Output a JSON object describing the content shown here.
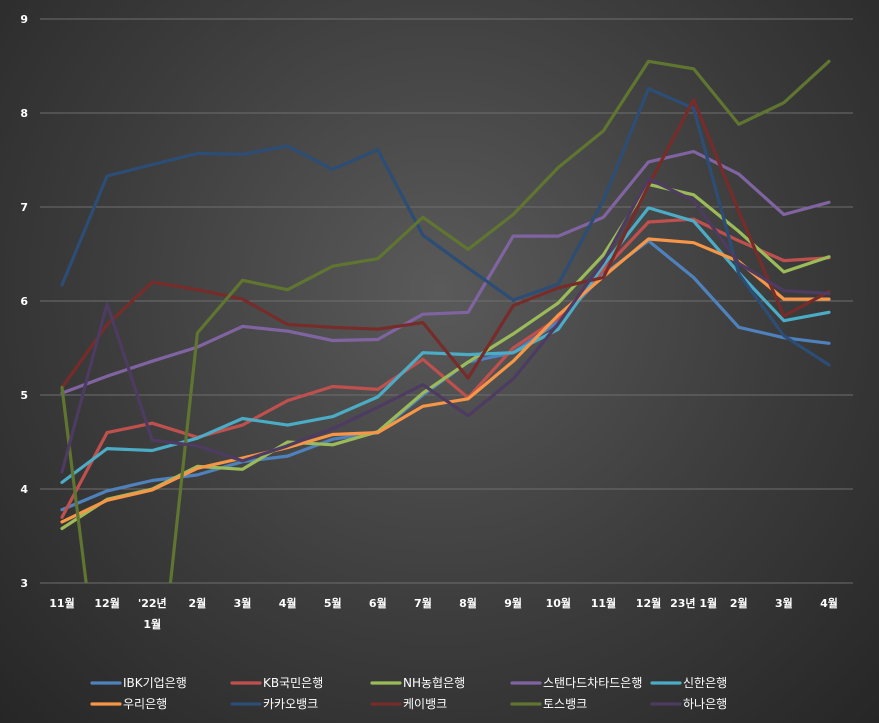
{
  "chart_data": {
    "type": "line",
    "title": "",
    "xlabel": "",
    "ylabel": "",
    "ylim": [
      3,
      9
    ],
    "yticks": [
      3,
      4,
      5,
      6,
      7,
      8,
      9
    ],
    "grid": true,
    "legend_position": "bottom",
    "categories": [
      "11월",
      "12월",
      "'22년 1월",
      "2월",
      "3월",
      "4월",
      "5월",
      "6월",
      "7월",
      "8월",
      "9월",
      "10월",
      "11월",
      "12월",
      "23년 1월",
      "2월",
      "3월",
      "4월"
    ],
    "series": [
      {
        "name": "IBK기업은행",
        "color": "#4f81bd",
        "values": [
          3.78,
          3.98,
          4.09,
          4.15,
          4.29,
          4.35,
          4.53,
          4.6,
          5.0,
          5.35,
          5.45,
          5.78,
          6.28,
          6.64,
          6.25,
          5.72,
          5.61,
          5.55
        ]
      },
      {
        "name": "KB국민은행",
        "color": "#c0504d",
        "values": [
          3.7,
          4.6,
          4.7,
          4.55,
          4.68,
          4.94,
          5.09,
          5.06,
          5.38,
          4.97,
          5.5,
          5.82,
          6.33,
          6.84,
          6.87,
          6.64,
          6.43,
          6.46
        ]
      },
      {
        "name": "NH농협은행",
        "color": "#9bbb59",
        "values": [
          3.58,
          3.89,
          4.0,
          4.24,
          4.21,
          4.5,
          4.47,
          4.61,
          5.02,
          5.35,
          5.65,
          5.98,
          6.49,
          7.24,
          7.13,
          6.74,
          6.31,
          6.47
        ]
      },
      {
        "name": "스탠다드차타드은행",
        "color": "#8064a2",
        "values": [
          5.02,
          5.2,
          5.36,
          5.51,
          5.73,
          5.68,
          5.58,
          5.59,
          5.86,
          5.88,
          6.69,
          6.69,
          6.89,
          7.48,
          7.59,
          7.35,
          6.92,
          7.05
        ]
      },
      {
        "name": "신한은행",
        "color": "#4bacc6",
        "values": [
          4.07,
          4.43,
          4.41,
          4.54,
          4.75,
          4.68,
          4.77,
          4.98,
          5.45,
          5.43,
          5.45,
          5.7,
          6.38,
          6.99,
          6.85,
          6.3,
          5.79,
          5.88
        ]
      },
      {
        "name": "우리은행",
        "color": "#f79646",
        "values": [
          3.65,
          3.88,
          3.99,
          4.22,
          4.33,
          4.44,
          4.58,
          4.6,
          4.88,
          4.96,
          5.36,
          5.85,
          6.26,
          6.66,
          6.62,
          6.42,
          6.02,
          6.02
        ]
      },
      {
        "name": "카카오뱅크",
        "color": "#2c4d75",
        "values": [
          6.17,
          7.33,
          7.45,
          7.57,
          7.56,
          7.65,
          7.4,
          7.61,
          6.7,
          6.35,
          6.01,
          6.18,
          7.07,
          8.26,
          8.05,
          6.29,
          5.63,
          5.32
        ]
      },
      {
        "name": "케이뱅크",
        "color": "#772c2a",
        "values": [
          5.08,
          5.75,
          6.2,
          6.12,
          6.02,
          5.75,
          5.72,
          5.7,
          5.77,
          5.18,
          5.95,
          6.14,
          6.25,
          7.23,
          8.14,
          6.95,
          5.84,
          6.1
        ]
      },
      {
        "name": "토스뱅크",
        "color": "#5f7530",
        "values": [
          5.08,
          1.2,
          1.2,
          5.66,
          6.22,
          6.12,
          6.37,
          6.45,
          6.89,
          6.55,
          6.92,
          7.42,
          7.81,
          8.55,
          8.47,
          7.88,
          8.11,
          8.55
        ]
      },
      {
        "name": "하나은행",
        "color": "#4d3b62",
        "values": [
          4.18,
          5.97,
          4.52,
          4.46,
          4.3,
          4.46,
          4.64,
          4.87,
          5.11,
          4.78,
          5.17,
          5.76,
          6.42,
          7.3,
          7.07,
          6.4,
          6.11,
          6.08
        ]
      }
    ]
  }
}
